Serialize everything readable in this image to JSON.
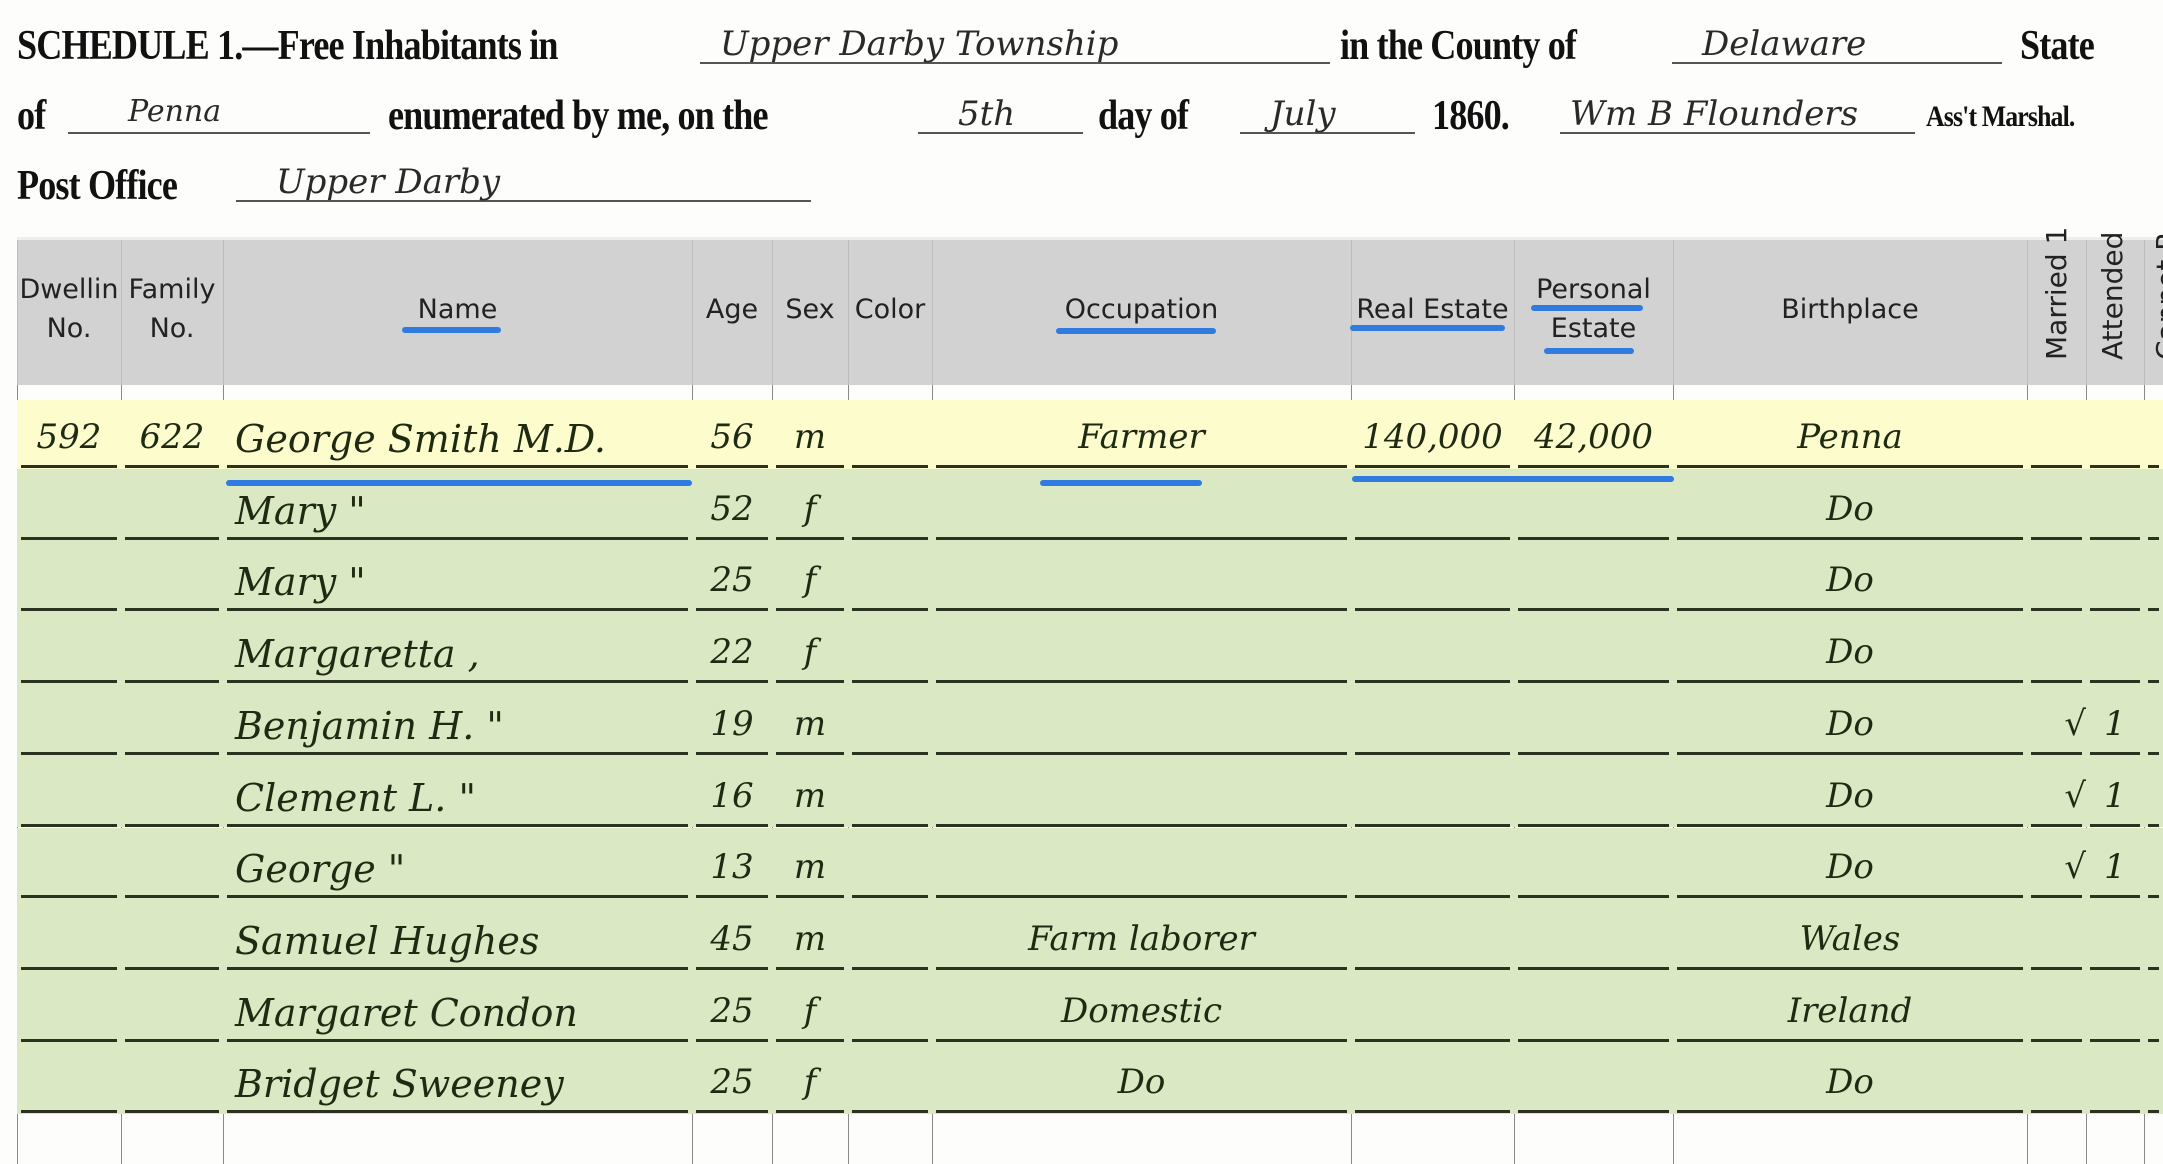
{
  "header": {
    "schedule_label": "SCHEDULE 1.—Free Inhabitants in",
    "township": "Upper Darby Township",
    "county_label": "in the County of",
    "county": "Delaware",
    "state_label": "State",
    "of_label": "of",
    "state": "Penna",
    "enumerated_label": "enumerated by me, on the",
    "day": "5th",
    "day_label": "day of",
    "month": "July",
    "year": "1860.",
    "marshal": "Wm B Flounders",
    "marshal_label": "Ass't Marshal.",
    "post_office_label": "Post Office",
    "post_office": "Upper Darby"
  },
  "columns": {
    "dwelling": [
      "Dwellin",
      "No."
    ],
    "family": [
      "Family",
      "No."
    ],
    "name": "Name",
    "age": "Age",
    "sex": "Sex",
    "color": "Color",
    "occupation": "Occupation",
    "real_estate": "Real Estate",
    "personal_estate": [
      "Personal",
      "Estate"
    ],
    "birthplace": "Birthplace",
    "married": "Married 1",
    "attended": "Attended",
    "cannot": "Cannot R"
  },
  "highlight_colors": {
    "selected_row": "#fdfccc",
    "household_rows": "#dbe8c4",
    "underline": "#2f7be0",
    "header_band": "#c8c8c8"
  },
  "rows": [
    {
      "dwelling": "592",
      "family": "622",
      "name": "George Smith M.D.",
      "age": "56",
      "sex": "m",
      "occupation": "Farmer",
      "real_estate": "140,000",
      "personal_estate": "42,000",
      "birthplace": "Penna",
      "married": "",
      "attended": "",
      "highlight": "selected"
    },
    {
      "dwelling": "",
      "family": "",
      "name": "Mary      \"",
      "age": "52",
      "sex": "f",
      "occupation": "",
      "real_estate": "",
      "personal_estate": "",
      "birthplace": "Do",
      "married": "",
      "attended": "",
      "highlight": "household"
    },
    {
      "dwelling": "",
      "family": "",
      "name": "Mary       \"",
      "age": "25",
      "sex": "f",
      "occupation": "",
      "real_estate": "",
      "personal_estate": "",
      "birthplace": "Do",
      "married": "",
      "attended": "",
      "highlight": "household"
    },
    {
      "dwelling": "",
      "family": "",
      "name": "Margaretta  ,",
      "age": "22",
      "sex": "f",
      "occupation": "",
      "real_estate": "",
      "personal_estate": "",
      "birthplace": "Do",
      "married": "",
      "attended": "",
      "highlight": "household"
    },
    {
      "dwelling": "",
      "family": "",
      "name": "Benjamin H.  \"",
      "age": "19",
      "sex": "m",
      "occupation": "",
      "real_estate": "",
      "personal_estate": "",
      "birthplace": "Do",
      "married": "√",
      "attended": "1",
      "highlight": "household"
    },
    {
      "dwelling": "",
      "family": "",
      "name": "Clement L.  \"",
      "age": "16",
      "sex": "m",
      "occupation": "",
      "real_estate": "",
      "personal_estate": "",
      "birthplace": "Do",
      "married": "√",
      "attended": "1",
      "highlight": "household"
    },
    {
      "dwelling": "",
      "family": "",
      "name": "George     \"",
      "age": "13",
      "sex": "m",
      "occupation": "",
      "real_estate": "",
      "personal_estate": "",
      "birthplace": "Do",
      "married": "√",
      "attended": "1",
      "highlight": "household"
    },
    {
      "dwelling": "",
      "family": "",
      "name": "Samuel Hughes",
      "age": "45",
      "sex": "m",
      "occupation": "Farm laborer",
      "real_estate": "",
      "personal_estate": "",
      "birthplace": "Wales",
      "married": "",
      "attended": "",
      "highlight": "household"
    },
    {
      "dwelling": "",
      "family": "",
      "name": "Margaret Condon",
      "age": "25",
      "sex": "f",
      "occupation": "Domestic",
      "real_estate": "",
      "personal_estate": "",
      "birthplace": "Ireland",
      "married": "",
      "attended": "",
      "highlight": "household"
    },
    {
      "dwelling": "",
      "family": "",
      "name": "Bridget Sweeney",
      "age": "25",
      "sex": "f",
      "occupation": "Do",
      "real_estate": "",
      "personal_estate": "",
      "birthplace": "Do",
      "married": "",
      "attended": "",
      "highlight": "household"
    }
  ]
}
